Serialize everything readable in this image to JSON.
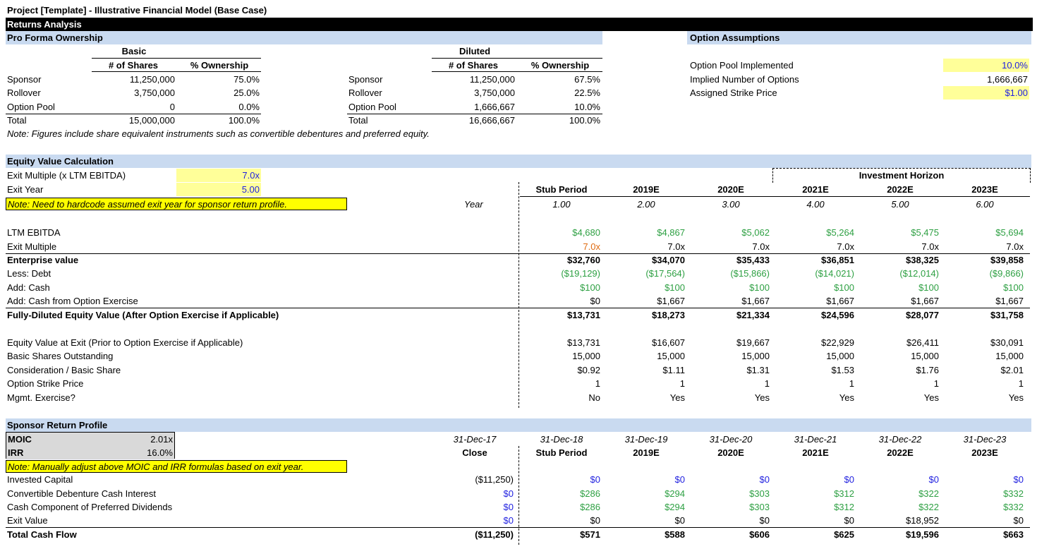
{
  "title": "Project [Template] - Illustrative Financial Model (Base Case)",
  "section_bar": "Returns Analysis",
  "pro_forma": {
    "header": "Pro Forma Ownership",
    "basic_label": "Basic",
    "diluted_label": "Diluted",
    "col_shares": "# of Shares",
    "col_pct": "% Ownership",
    "basic_rows": [
      {
        "label": "Sponsor",
        "shares": "11,250,000",
        "pct": "75.0%"
      },
      {
        "label": "Rollover",
        "shares": "3,750,000",
        "pct": "25.0%"
      },
      {
        "label": "Option Pool",
        "shares": "0",
        "pct": "0.0%"
      },
      {
        "label": "Total",
        "shares": "15,000,000",
        "pct": "100.0%"
      }
    ],
    "diluted_rows": [
      {
        "label": "Sponsor",
        "shares": "11,250,000",
        "pct": "67.5%"
      },
      {
        "label": "Rollover",
        "shares": "3,750,000",
        "pct": "22.5%"
      },
      {
        "label": "Option Pool",
        "shares": "1,666,667",
        "pct": "10.0%"
      },
      {
        "label": "Total",
        "shares": "16,666,667",
        "pct": "100.0%"
      }
    ],
    "note": "Note: Figures include share equivalent instruments such as convertible debentures and preferred equity."
  },
  "option_assumptions": {
    "header": "Option Assumptions",
    "rows": [
      {
        "label": "Option Pool Implemented",
        "value": "10.0%"
      },
      {
        "label": "Implied Number of Options",
        "value": "1,666,667"
      },
      {
        "label": "Assigned Strike Price",
        "value": "$1.00"
      }
    ]
  },
  "equity_value": {
    "header": "Equity Value Calculation",
    "exit_multiple_label": "Exit Multiple (x LTM EBITDA)",
    "exit_multiple_value": "7.0x",
    "exit_year_label": "Exit Year",
    "exit_year_value": "5.00",
    "note": "Note: Need to hardcode assumed exit year for sponsor return profile.",
    "investment_horizon": "Investment Horizon",
    "year_label": "Year",
    "periods": [
      "Stub Period",
      "2019E",
      "2020E",
      "2021E",
      "2022E",
      "2023E"
    ],
    "years": [
      "1.00",
      "2.00",
      "3.00",
      "4.00",
      "5.00",
      "6.00"
    ],
    "rows": [
      {
        "label": "LTM EBITDA",
        "values": [
          "$4,680",
          "$4,867",
          "$5,062",
          "$5,264",
          "$5,475",
          "$5,694"
        ]
      },
      {
        "label": "Exit Multiple",
        "values": [
          "7.0x",
          "7.0x",
          "7.0x",
          "7.0x",
          "7.0x",
          "7.0x"
        ]
      },
      {
        "label": "Enterprise value",
        "values": [
          "$32,760",
          "$34,070",
          "$35,433",
          "$36,851",
          "$38,325",
          "$39,858"
        ]
      },
      {
        "label": "Less: Debt",
        "values": [
          "($19,129)",
          "($17,564)",
          "($15,866)",
          "($14,021)",
          "($12,014)",
          "($9,866)"
        ]
      },
      {
        "label": "Add: Cash",
        "values": [
          "$100",
          "$100",
          "$100",
          "$100",
          "$100",
          "$100"
        ]
      },
      {
        "label": "Add: Cash from Option Exercise",
        "values": [
          "$0",
          "$1,667",
          "$1,667",
          "$1,667",
          "$1,667",
          "$1,667"
        ]
      },
      {
        "label": "Fully-Diluted Equity Value (After Option Exercise if Applicable)",
        "values": [
          "$13,731",
          "$18,273",
          "$21,334",
          "$24,596",
          "$28,077",
          "$31,758"
        ]
      },
      {
        "label": "Equity Value at Exit (Prior to Option Exercise if Applicable)",
        "values": [
          "$13,731",
          "$16,607",
          "$19,667",
          "$22,929",
          "$26,411",
          "$30,091"
        ]
      },
      {
        "label": "Basic Shares Outstanding",
        "values": [
          "15,000",
          "15,000",
          "15,000",
          "15,000",
          "15,000",
          "15,000"
        ]
      },
      {
        "label": "Consideration / Basic Share",
        "values": [
          "$0.92",
          "$1.11",
          "$1.31",
          "$1.53",
          "$1.76",
          "$2.01"
        ]
      },
      {
        "label": "Option Strike Price",
        "values": [
          "1",
          "1",
          "1",
          "1",
          "1",
          "1"
        ]
      },
      {
        "label": "Mgmt. Exercise?",
        "values": [
          "No",
          "Yes",
          "Yes",
          "Yes",
          "Yes",
          "Yes"
        ]
      }
    ]
  },
  "sponsor_return": {
    "header": "Sponsor Return Profile",
    "moic_label": "MOIC",
    "moic_value": "2.01x",
    "irr_label": "IRR",
    "irr_value": "16.0%",
    "note": "Note: Manually adjust above MOIC and IRR formulas based on exit year.",
    "dates": [
      "31-Dec-17",
      "31-Dec-18",
      "31-Dec-19",
      "31-Dec-20",
      "31-Dec-21",
      "31-Dec-22",
      "31-Dec-23"
    ],
    "periods": [
      "Close",
      "Stub Period",
      "2019E",
      "2020E",
      "2021E",
      "2022E",
      "2023E"
    ],
    "rows": [
      {
        "label": "Invested Capital",
        "values": [
          "($11,250)",
          "$0",
          "$0",
          "$0",
          "$0",
          "$0",
          "$0"
        ]
      },
      {
        "label": "Convertible Debenture Cash Interest",
        "values": [
          "$0",
          "$286",
          "$294",
          "$303",
          "$312",
          "$322",
          "$332"
        ]
      },
      {
        "label": "Cash Component of Preferred Dividends",
        "values": [
          "$0",
          "$286",
          "$294",
          "$303",
          "$312",
          "$322",
          "$332"
        ]
      },
      {
        "label": "Exit Value",
        "values": [
          "$0",
          "$0",
          "$0",
          "$0",
          "$0",
          "$18,952",
          "$0"
        ]
      },
      {
        "label": "Total Cash Flow",
        "values": [
          "($11,250)",
          "$571",
          "$588",
          "$606",
          "$625",
          "$19,596",
          "$663"
        ]
      }
    ]
  },
  "colors": {
    "input_blue": "#1f1fe0",
    "link_green": "#2ea043",
    "override_orange": "#e06b10",
    "band": "#c9daf0",
    "highlight": "#ffff99"
  }
}
